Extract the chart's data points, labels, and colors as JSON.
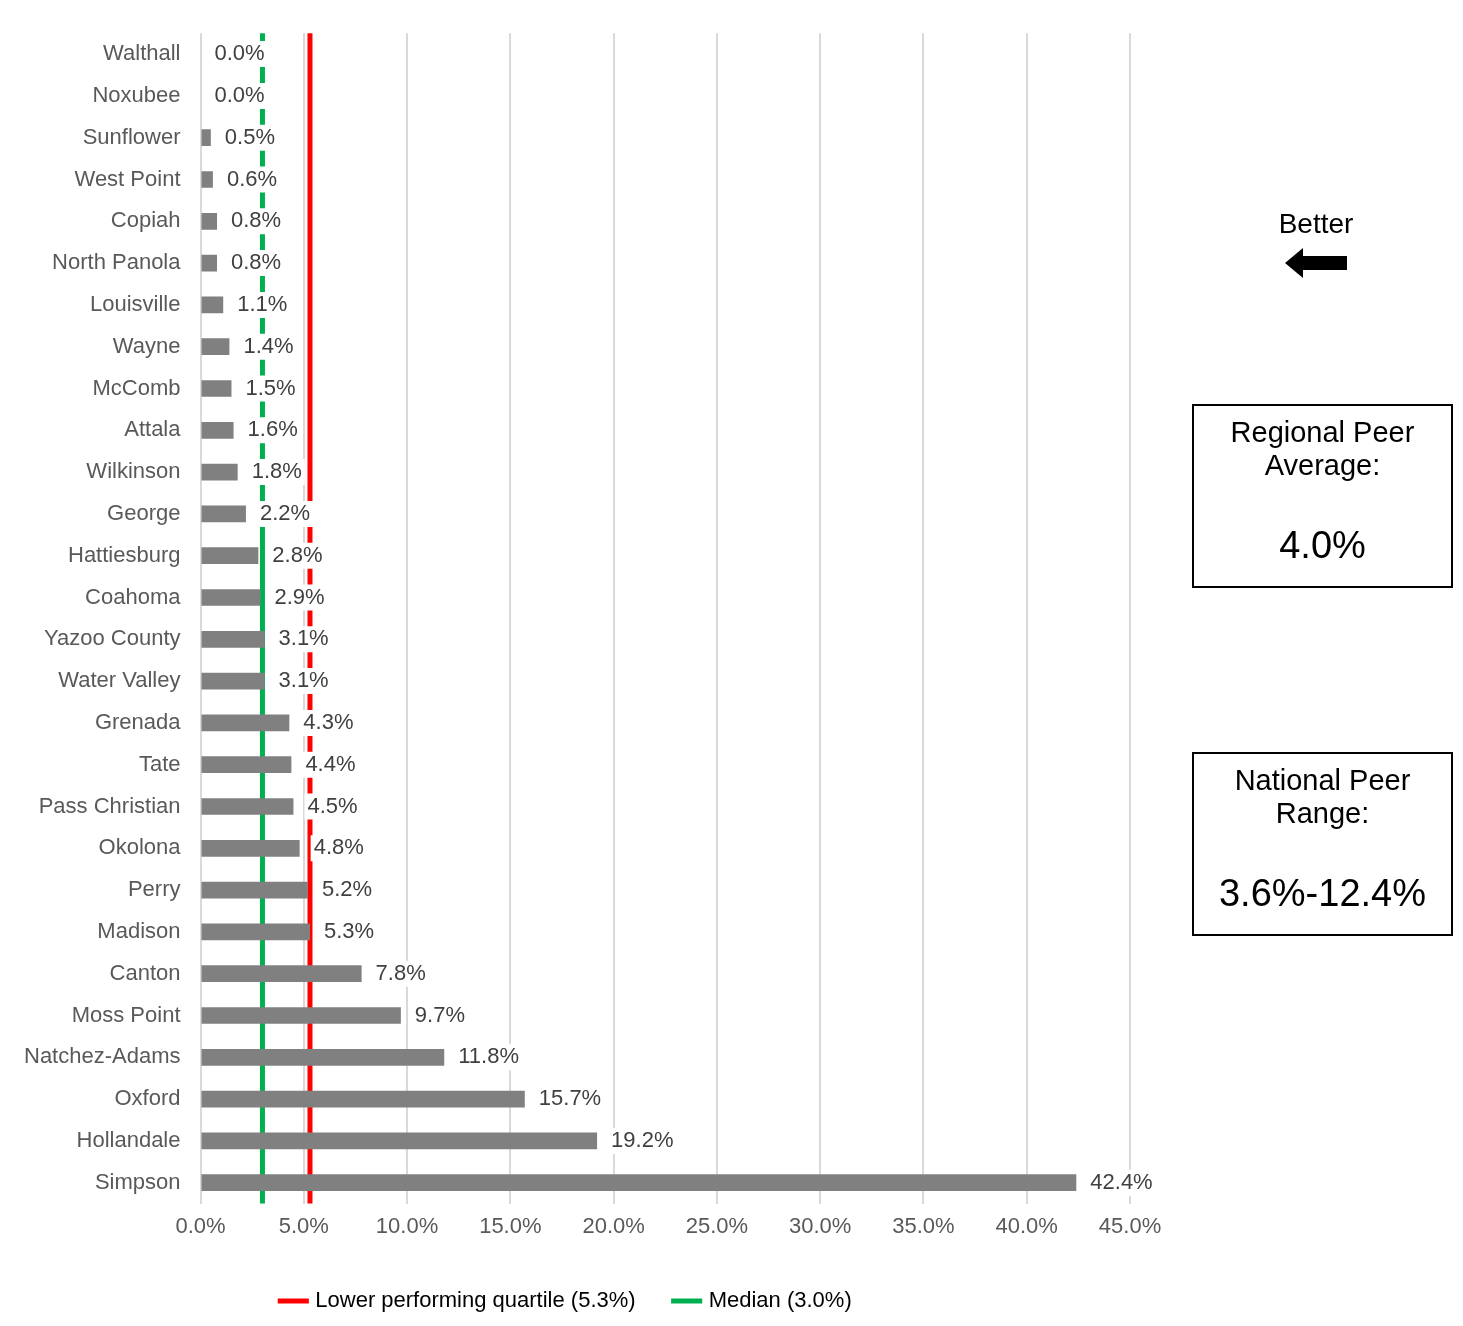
{
  "chart_data": {
    "type": "bar",
    "orientation": "horizontal",
    "categories": [
      "Walthall",
      "Noxubee",
      "Sunflower",
      "West Point",
      "Copiah",
      "North Panola",
      "Louisville",
      "Wayne",
      "McComb",
      "Attala",
      "Wilkinson",
      "George",
      "Hattiesburg",
      "Coahoma",
      "Yazoo County",
      "Water Valley",
      "Grenada",
      "Tate",
      "Pass Christian",
      "Okolona",
      "Perry",
      "Madison",
      "Canton",
      "Moss Point",
      "Natchez-Adams",
      "Oxford",
      "Hollandale",
      "Simpson"
    ],
    "values": [
      0.0,
      0.0,
      0.5,
      0.6,
      0.8,
      0.8,
      1.1,
      1.4,
      1.5,
      1.6,
      1.8,
      2.2,
      2.8,
      2.9,
      3.1,
      3.1,
      4.3,
      4.4,
      4.5,
      4.8,
      5.2,
      5.3,
      7.8,
      9.7,
      11.8,
      15.7,
      19.2,
      42.4
    ],
    "value_labels": [
      "0.0%",
      "0.0%",
      "0.5%",
      "0.6%",
      "0.8%",
      "0.8%",
      "1.1%",
      "1.4%",
      "1.5%",
      "1.6%",
      "1.8%",
      "2.2%",
      "2.8%",
      "2.9%",
      "3.1%",
      "3.1%",
      "4.3%",
      "4.4%",
      "4.5%",
      "4.8%",
      "5.2%",
      "5.3%",
      "7.8%",
      "9.7%",
      "11.8%",
      "15.7%",
      "19.2%",
      "42.4%"
    ],
    "color": "#808080",
    "xlim": [
      0,
      45
    ],
    "xticks": [
      {
        "value": 0,
        "label": "0.0%"
      },
      {
        "value": 5,
        "label": "5.0%"
      },
      {
        "value": 10,
        "label": "10.0%"
      },
      {
        "value": 15,
        "label": "15.0%"
      },
      {
        "value": 20,
        "label": "20.0%"
      },
      {
        "value": 25,
        "label": "25.0%"
      },
      {
        "value": 30,
        "label": "30.0%"
      },
      {
        "value": 35,
        "label": "35.0%"
      },
      {
        "value": 40,
        "label": "40.0%"
      },
      {
        "value": 45,
        "label": "45.0%"
      }
    ],
    "grid": "x",
    "ref_lines": [
      {
        "axis": "x",
        "value": 5.3,
        "label": "Lower performing quartile (5.3%)",
        "color": "#ff0000"
      },
      {
        "axis": "x",
        "value": 3.0,
        "label": "Median (3.0%)",
        "color": "#00b050"
      }
    ],
    "legend": "bottom",
    "annotations": [
      "Better",
      "Regional Peer Average:",
      "4.0%",
      "National Peer Range:",
      "3.6%-12.4%"
    ]
  }
}
